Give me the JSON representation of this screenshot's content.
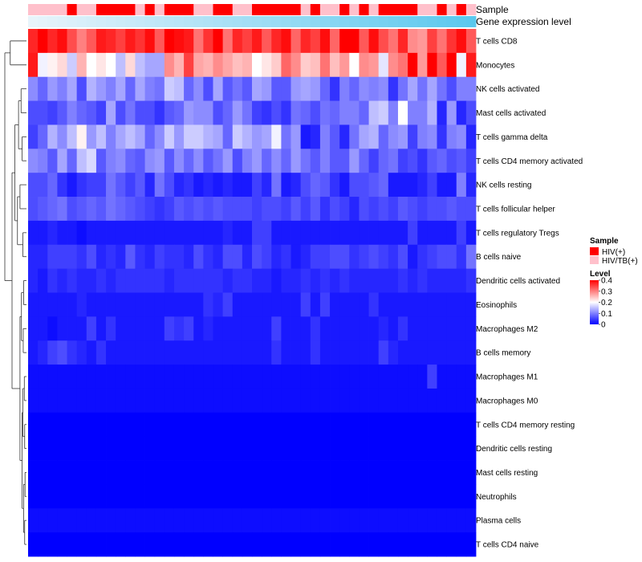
{
  "chart_data": {
    "type": "heatmap",
    "title": "",
    "annotation_tracks": [
      "Sample",
      "Gene expression level"
    ],
    "row_labels": [
      "T cells CD8",
      "Monocytes",
      "NK cells activated",
      "Mast cells activated",
      "T cells gamma delta",
      "T cells CD4 memory activated",
      "NK cells resting",
      "T cells follicular helper",
      "T cells regulatory  Tregs",
      "B cells naive",
      "Dendritic cells activated",
      "Eosinophils",
      "Macrophages M2",
      "B cells memory",
      "Macrophages M1",
      "Macrophages M0",
      "T cells CD4 memory resting",
      "Dendritic cells resting",
      "Mast cells resting",
      "Neutrophils",
      "Plasma cells",
      "T cells CD4 naive"
    ],
    "n_samples": 46,
    "sample_groups": [
      "HIV/TB(+)",
      "HIV/TB(+)",
      "HIV/TB(+)",
      "HIV/TB(+)",
      "HIV(+)",
      "HIV/TB(+)",
      "HIV/TB(+)",
      "HIV(+)",
      "HIV(+)",
      "HIV(+)",
      "HIV(+)",
      "HIV/TB(+)",
      "HIV(+)",
      "HIV/TB(+)",
      "HIV(+)",
      "HIV(+)",
      "HIV(+)",
      "HIV/TB(+)",
      "HIV/TB(+)",
      "HIV(+)",
      "HIV(+)",
      "HIV/TB(+)",
      "HIV/TB(+)",
      "HIV(+)",
      "HIV(+)",
      "HIV(+)",
      "HIV(+)",
      "HIV(+)",
      "HIV/TB(+)",
      "HIV(+)",
      "HIV/TB(+)",
      "HIV/TB(+)",
      "HIV(+)",
      "HIV/TB(+)",
      "HIV(+)",
      "HIV/TB(+)",
      "HIV(+)",
      "HIV(+)",
      "HIV(+)",
      "HIV(+)",
      "HIV/TB(+)",
      "HIV/TB(+)",
      "HIV(+)",
      "HIV/TB(+)",
      "HIV(+)",
      "HIV/TB(+)"
    ],
    "legend": {
      "sample": {
        "title": "Sample",
        "entries": [
          {
            "label": "HIV(+)",
            "color": "#ff0000"
          },
          {
            "label": "HIV/TB(+)",
            "color": "#ffc0cb"
          }
        ]
      },
      "level": {
        "title": "Level",
        "ticks": [
          0.4,
          0.3,
          0.2,
          0.1,
          0
        ],
        "range": [
          0,
          0.4
        ],
        "colors": [
          "#0000ff",
          "#ffffff",
          "#ff0000"
        ]
      }
    },
    "gene_expression_colors": [
      "#e8f4fb",
      "#5bc8ee"
    ],
    "dendrogram": [
      {
        "l": [
          0,
          1
        ],
        "h": 0.45
      },
      {
        "l": [
          2,
          3
        ],
        "h": 0.15
      },
      {
        "l": [
          4,
          5
        ],
        "h": 0.12
      },
      {
        "l": [
          6,
          7
        ],
        "h": 0.18
      },
      {
        "l": [
          8,
          9
        ],
        "h": 0.1
      },
      {
        "l": [
          10,
          11
        ],
        "h": 0.08
      },
      {
        "l": [
          12,
          13
        ],
        "h": 0.09
      },
      {
        "l": [
          14,
          15
        ],
        "h": 0.06
      },
      {
        "l": [
          16,
          17
        ],
        "h": 0.05
      },
      {
        "l": [
          18,
          19
        ],
        "h": 0.04
      },
      {
        "l": [
          20,
          21
        ],
        "h": 0.05
      },
      {
        "n": [
          1,
          2
        ],
        "h": 0.22
      },
      {
        "n": [
          3,
          4
        ],
        "h": 0.25
      },
      {
        "n": [
          11,
          12
        ],
        "h": 0.32
      },
      {
        "n": [
          5,
          6
        ],
        "h": 0.14
      },
      {
        "n": [
          7,
          8
        ],
        "h": 0.1
      },
      {
        "n": [
          9,
          10
        ],
        "h": 0.08
      },
      {
        "n": [
          15,
          16
        ],
        "h": 0.12
      },
      {
        "n": [
          14,
          17
        ],
        "h": 0.18
      },
      {
        "n": [
          18,
          13
        ],
        "h": 0.4
      },
      {
        "n": [
          0,
          19
        ],
        "h": 0.6
      }
    ],
    "values": [
      [
        0.37,
        0.4,
        0.37,
        0.39,
        0.34,
        0.3,
        0.33,
        0.38,
        0.37,
        0.35,
        0.38,
        0.36,
        0.39,
        0.33,
        0.4,
        0.39,
        0.38,
        0.31,
        0.36,
        0.4,
        0.31,
        0.37,
        0.35,
        0.38,
        0.33,
        0.37,
        0.39,
        0.32,
        0.37,
        0.35,
        0.39,
        0.32,
        0.4,
        0.4,
        0.33,
        0.39,
        0.34,
        0.31,
        0.37,
        0.29,
        0.28,
        0.35,
        0.31,
        0.36,
        0.39,
        0.33
      ],
      [
        0.38,
        0.19,
        0.21,
        0.23,
        0.16,
        0.26,
        0.2,
        0.22,
        0.2,
        0.15,
        0.23,
        0.15,
        0.13,
        0.13,
        0.29,
        0.26,
        0.35,
        0.27,
        0.26,
        0.29,
        0.27,
        0.25,
        0.26,
        0.2,
        0.22,
        0.24,
        0.32,
        0.29,
        0.24,
        0.25,
        0.31,
        0.25,
        0.28,
        0.2,
        0.29,
        0.28,
        0.18,
        0.29,
        0.31,
        0.4,
        0.28,
        0.4,
        0.33,
        0.4,
        0.19,
        0.38
      ],
      [
        0.11,
        0.08,
        0.12,
        0.1,
        0.13,
        0.06,
        0.14,
        0.12,
        0.1,
        0.13,
        0.08,
        0.13,
        0.1,
        0.09,
        0.16,
        0.15,
        0.08,
        0.11,
        0.06,
        0.13,
        0.07,
        0.09,
        0.07,
        0.13,
        0.12,
        0.07,
        0.07,
        0.12,
        0.13,
        0.12,
        0.08,
        0.04,
        0.1,
        0.08,
        0.11,
        0.1,
        0.11,
        0.04,
        0.09,
        0.13,
        0.09,
        0.13,
        0.09,
        0.06,
        0.1,
        0.1
      ],
      [
        0.06,
        0.06,
        0.05,
        0.07,
        0.1,
        0.08,
        0.07,
        0.05,
        0.13,
        0.06,
        0.09,
        0.06,
        0.06,
        0.04,
        0.07,
        0.08,
        0.12,
        0.11,
        0.11,
        0.06,
        0.08,
        0.12,
        0.09,
        0.05,
        0.04,
        0.06,
        0.04,
        0.09,
        0.08,
        0.06,
        0.09,
        0.08,
        0.1,
        0.1,
        0.08,
        0.15,
        0.16,
        0.1,
        0.2,
        0.1,
        0.1,
        0.14,
        0.03,
        0.12,
        0.03,
        0.06
      ],
      [
        0.05,
        0.08,
        0.14,
        0.11,
        0.15,
        0.21,
        0.12,
        0.15,
        0.1,
        0.13,
        0.15,
        0.13,
        0.08,
        0.11,
        0.16,
        0.12,
        0.16,
        0.16,
        0.14,
        0.13,
        0.08,
        0.16,
        0.14,
        0.12,
        0.13,
        0.19,
        0.09,
        0.12,
        0.02,
        0.03,
        0.1,
        0.07,
        0.03,
        0.09,
        0.13,
        0.14,
        0.08,
        0.11,
        0.12,
        0.05,
        0.1,
        0.11,
        0.04,
        0.1,
        0.11,
        0.03
      ],
      [
        0.11,
        0.1,
        0.07,
        0.13,
        0.08,
        0.15,
        0.17,
        0.07,
        0.1,
        0.11,
        0.08,
        0.07,
        0.11,
        0.12,
        0.07,
        0.11,
        0.08,
        0.11,
        0.07,
        0.09,
        0.12,
        0.06,
        0.1,
        0.12,
        0.08,
        0.11,
        0.08,
        0.12,
        0.09,
        0.07,
        0.1,
        0.07,
        0.07,
        0.12,
        0.08,
        0.05,
        0.08,
        0.09,
        0.05,
        0.06,
        0.04,
        0.07,
        0.08,
        0.06,
        0.07,
        0.05
      ],
      [
        0.06,
        0.06,
        0.08,
        0.04,
        0.02,
        0.04,
        0.05,
        0.05,
        0.09,
        0.07,
        0.05,
        0.07,
        0.03,
        0.09,
        0.06,
        0.03,
        0.04,
        0.02,
        0.03,
        0.02,
        0.03,
        0.02,
        0.02,
        0.05,
        0.03,
        0.09,
        0.02,
        0.03,
        0.06,
        0.08,
        0.07,
        0.04,
        0.02,
        0.06,
        0.06,
        0.07,
        0.08,
        0.02,
        0.02,
        0.02,
        0.03,
        0.05,
        0.02,
        0.02,
        0.1,
        0.03
      ],
      [
        0.06,
        0.07,
        0.08,
        0.09,
        0.06,
        0.07,
        0.08,
        0.07,
        0.09,
        0.08,
        0.07,
        0.06,
        0.05,
        0.04,
        0.05,
        0.07,
        0.06,
        0.07,
        0.06,
        0.07,
        0.06,
        0.06,
        0.06,
        0.05,
        0.06,
        0.06,
        0.05,
        0.07,
        0.05,
        0.07,
        0.04,
        0.06,
        0.05,
        0.03,
        0.06,
        0.05,
        0.06,
        0.05,
        0.07,
        0.06,
        0.05,
        0.06,
        0.06,
        0.07,
        0.06,
        0.06
      ],
      [
        0.02,
        0.02,
        0.03,
        0.02,
        0.02,
        0.01,
        0.02,
        0.02,
        0.02,
        0.02,
        0.02,
        0.02,
        0.02,
        0.02,
        0.02,
        0.02,
        0.02,
        0.02,
        0.02,
        0.02,
        0.03,
        0.02,
        0.02,
        0.05,
        0.05,
        0.02,
        0.02,
        0.02,
        0.02,
        0.02,
        0.02,
        0.02,
        0.02,
        0.02,
        0.02,
        0.02,
        0.02,
        0.02,
        0.02,
        0.05,
        0.02,
        0.02,
        0.02,
        0.02,
        0.05,
        0.02
      ],
      [
        0.03,
        0.03,
        0.05,
        0.05,
        0.05,
        0.04,
        0.06,
        0.03,
        0.04,
        0.03,
        0.07,
        0.04,
        0.03,
        0.05,
        0.04,
        0.04,
        0.03,
        0.06,
        0.04,
        0.03,
        0.06,
        0.06,
        0.03,
        0.06,
        0.05,
        0.03,
        0.04,
        0.02,
        0.03,
        0.05,
        0.05,
        0.06,
        0.06,
        0.04,
        0.05,
        0.06,
        0.05,
        0.04,
        0.06,
        0.02,
        0.04,
        0.05,
        0.06,
        0.06,
        0.04,
        0.09
      ],
      [
        0.03,
        0.02,
        0.04,
        0.03,
        0.04,
        0.03,
        0.03,
        0.04,
        0.03,
        0.04,
        0.04,
        0.04,
        0.04,
        0.04,
        0.03,
        0.04,
        0.04,
        0.04,
        0.04,
        0.04,
        0.03,
        0.04,
        0.04,
        0.03,
        0.03,
        0.02,
        0.03,
        0.03,
        0.04,
        0.03,
        0.04,
        0.03,
        0.04,
        0.03,
        0.03,
        0.03,
        0.03,
        0.03,
        0.04,
        0.03,
        0.04,
        0.03,
        0.03,
        0.03,
        0.03,
        0.04
      ],
      [
        0.02,
        0.02,
        0.02,
        0.02,
        0.02,
        0.03,
        0.02,
        0.02,
        0.02,
        0.02,
        0.02,
        0.02,
        0.02,
        0.02,
        0.02,
        0.02,
        0.02,
        0.02,
        0.04,
        0.03,
        0.05,
        0.02,
        0.02,
        0.02,
        0.02,
        0.02,
        0.02,
        0.02,
        0.05,
        0.02,
        0.05,
        0.02,
        0.02,
        0.02,
        0.02,
        0.04,
        0.02,
        0.02,
        0.02,
        0.02,
        0.02,
        0.02,
        0.02,
        0.02,
        0.02,
        0.02
      ],
      [
        0.02,
        0.02,
        0.01,
        0.02,
        0.02,
        0.02,
        0.05,
        0.02,
        0.04,
        0.02,
        0.02,
        0.02,
        0.02,
        0.02,
        0.05,
        0.04,
        0.05,
        0.02,
        0.03,
        0.02,
        0.02,
        0.02,
        0.02,
        0.02,
        0.02,
        0.05,
        0.02,
        0.02,
        0.02,
        0.04,
        0.02,
        0.02,
        0.02,
        0.02,
        0.02,
        0.02,
        0.03,
        0.02,
        0.04,
        0.02,
        0.02,
        0.02,
        0.02,
        0.02,
        0.02,
        0.02
      ],
      [
        0.02,
        0.03,
        0.05,
        0.06,
        0.04,
        0.03,
        0.02,
        0.04,
        0.02,
        0.02,
        0.02,
        0.02,
        0.02,
        0.02,
        0.02,
        0.02,
        0.02,
        0.02,
        0.02,
        0.02,
        0.02,
        0.02,
        0.02,
        0.02,
        0.02,
        0.04,
        0.02,
        0.02,
        0.02,
        0.04,
        0.02,
        0.02,
        0.02,
        0.02,
        0.02,
        0.02,
        0.05,
        0.03,
        0.02,
        0.02,
        0.02,
        0.02,
        0.02,
        0.02,
        0.02,
        0.02
      ],
      [
        0.01,
        0.01,
        0.01,
        0.01,
        0.01,
        0.01,
        0.01,
        0.01,
        0.01,
        0.01,
        0.01,
        0.01,
        0.01,
        0.01,
        0.01,
        0.01,
        0.01,
        0.01,
        0.01,
        0.01,
        0.01,
        0.01,
        0.01,
        0.01,
        0.01,
        0.01,
        0.01,
        0.01,
        0.01,
        0.01,
        0.01,
        0.01,
        0.01,
        0.01,
        0.01,
        0.01,
        0.01,
        0.01,
        0.01,
        0.01,
        0.01,
        0.05,
        0.01,
        0.01,
        0.01,
        0.01
      ],
      [
        0.01,
        0.01,
        0.01,
        0.01,
        0.01,
        0.01,
        0.01,
        0.01,
        0.01,
        0.01,
        0.01,
        0.01,
        0.01,
        0.01,
        0.01,
        0.01,
        0.01,
        0.01,
        0.01,
        0.01,
        0.01,
        0.01,
        0.01,
        0.01,
        0.01,
        0.01,
        0.01,
        0.01,
        0.01,
        0.01,
        0.01,
        0.01,
        0.01,
        0.01,
        0.01,
        0.01,
        0.01,
        0.01,
        0.01,
        0.01,
        0.01,
        0.01,
        0.01,
        0.01,
        0.01,
        0.01
      ],
      [
        0,
        0,
        0,
        0,
        0,
        0,
        0,
        0,
        0,
        0,
        0,
        0,
        0,
        0,
        0,
        0,
        0,
        0,
        0,
        0,
        0,
        0,
        0,
        0,
        0,
        0,
        0,
        0,
        0,
        0,
        0,
        0,
        0,
        0,
        0,
        0,
        0,
        0,
        0,
        0,
        0,
        0,
        0,
        0,
        0,
        0
      ],
      [
        0,
        0,
        0,
        0,
        0,
        0,
        0,
        0,
        0,
        0,
        0,
        0,
        0,
        0,
        0,
        0,
        0,
        0,
        0,
        0,
        0,
        0,
        0,
        0,
        0,
        0,
        0,
        0,
        0,
        0,
        0,
        0,
        0,
        0,
        0,
        0,
        0,
        0,
        0,
        0,
        0,
        0,
        0,
        0,
        0,
        0
      ],
      [
        0,
        0,
        0,
        0,
        0,
        0,
        0,
        0,
        0,
        0,
        0,
        0,
        0,
        0,
        0,
        0,
        0,
        0,
        0,
        0,
        0,
        0,
        0,
        0,
        0,
        0,
        0,
        0,
        0,
        0,
        0,
        0,
        0,
        0,
        0,
        0,
        0,
        0,
        0,
        0,
        0,
        0,
        0,
        0,
        0,
        0
      ],
      [
        0,
        0,
        0,
        0,
        0,
        0,
        0,
        0,
        0,
        0,
        0,
        0,
        0,
        0,
        0,
        0,
        0,
        0,
        0,
        0,
        0,
        0,
        0,
        0,
        0,
        0,
        0,
        0,
        0,
        0,
        0,
        0,
        0,
        0,
        0,
        0,
        0,
        0,
        0,
        0,
        0,
        0,
        0,
        0,
        0,
        0
      ],
      [
        0.01,
        0.01,
        0.01,
        0.01,
        0.01,
        0.01,
        0.01,
        0.01,
        0.01,
        0.01,
        0.01,
        0.01,
        0.01,
        0.01,
        0.01,
        0.01,
        0.01,
        0.01,
        0.01,
        0.01,
        0.01,
        0.01,
        0.01,
        0.01,
        0.01,
        0.01,
        0.01,
        0.01,
        0.01,
        0.01,
        0.01,
        0.01,
        0.01,
        0.01,
        0.01,
        0.01,
        0.01,
        0.01,
        0.01,
        0.01,
        0.01,
        0.01,
        0.01,
        0.01,
        0.01,
        0.01
      ],
      [
        0,
        0,
        0,
        0,
        0,
        0,
        0,
        0,
        0,
        0,
        0,
        0,
        0,
        0,
        0,
        0,
        0,
        0,
        0,
        0,
        0,
        0,
        0,
        0,
        0,
        0,
        0,
        0,
        0,
        0,
        0,
        0,
        0,
        0,
        0,
        0,
        0,
        0,
        0,
        0,
        0,
        0,
        0,
        0,
        0,
        0
      ]
    ]
  }
}
